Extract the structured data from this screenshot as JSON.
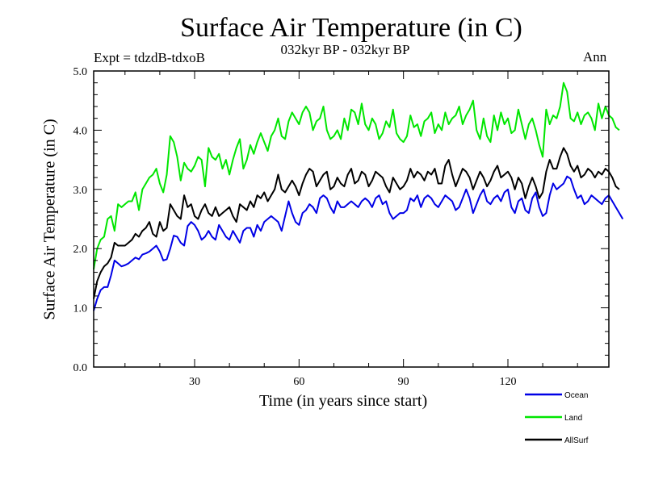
{
  "chart_data": {
    "type": "line",
    "title": "Surface Air Temperature (in C)",
    "subtitle": "032kyr BP - 032kyr BP",
    "experiment": "Expt = tdzdB-tdxoB",
    "season": "Ann",
    "xlabel": "Time (in years since start)",
    "ylabel": "Surface Air Temperature (in C)",
    "xlim": [
      1,
      149
    ],
    "ylim": [
      0,
      5
    ],
    "xticks": [
      30,
      60,
      90,
      120
    ],
    "xtick_labels": [
      "30",
      "60",
      "90",
      "120"
    ],
    "yticks": [
      0,
      1,
      2,
      3,
      4,
      5
    ],
    "ytick_labels": [
      "0.0",
      "1.0",
      "2.0",
      "3.0",
      "4.0",
      "5.0"
    ],
    "grid": false,
    "legend_position": "bottom-right",
    "series": [
      {
        "name": "Ocean",
        "color": "#0000e6",
        "values": [
          0.95,
          1.15,
          1.3,
          1.35,
          1.35,
          1.55,
          1.8,
          1.75,
          1.7,
          1.72,
          1.75,
          1.8,
          1.85,
          1.82,
          1.9,
          1.92,
          1.95,
          2.0,
          2.05,
          1.95,
          1.8,
          1.82,
          2.0,
          2.22,
          2.2,
          2.1,
          2.05,
          2.38,
          2.45,
          2.4,
          2.3,
          2.15,
          2.2,
          2.3,
          2.2,
          2.15,
          2.4,
          2.3,
          2.2,
          2.15,
          2.3,
          2.2,
          2.1,
          2.3,
          2.35,
          2.35,
          2.2,
          2.4,
          2.3,
          2.45,
          2.5,
          2.55,
          2.5,
          2.45,
          2.3,
          2.55,
          2.8,
          2.6,
          2.45,
          2.4,
          2.6,
          2.65,
          2.75,
          2.7,
          2.6,
          2.85,
          2.9,
          2.85,
          2.7,
          2.6,
          2.8,
          2.7,
          2.7,
          2.75,
          2.8,
          2.75,
          2.7,
          2.8,
          2.85,
          2.8,
          2.7,
          2.85,
          2.9,
          2.75,
          2.8,
          2.6,
          2.5,
          2.55,
          2.6,
          2.6,
          2.65,
          2.85,
          2.8,
          2.9,
          2.7,
          2.85,
          2.9,
          2.85,
          2.75,
          2.7,
          2.8,
          2.9,
          2.85,
          2.8,
          2.65,
          2.7,
          2.85,
          3.0,
          2.85,
          2.6,
          2.75,
          2.9,
          3.0,
          2.8,
          2.75,
          2.85,
          2.9,
          2.8,
          2.95,
          3.0,
          2.7,
          2.6,
          2.8,
          2.85,
          2.65,
          2.6,
          2.85,
          2.95,
          2.7,
          2.55,
          2.6,
          2.9,
          3.1,
          3.0,
          3.05,
          3.1,
          3.22,
          3.18,
          3.0,
          2.85,
          2.9,
          2.75,
          2.8,
          2.9,
          2.85,
          2.8,
          2.75,
          2.85,
          2.9,
          2.8,
          2.7,
          2.6,
          2.5
        ]
      },
      {
        "name": "Land",
        "color": "#00e600",
        "values": [
          1.65,
          2.0,
          2.15,
          2.2,
          2.5,
          2.55,
          2.3,
          2.75,
          2.7,
          2.75,
          2.8,
          2.8,
          2.95,
          2.65,
          3.0,
          3.1,
          3.2,
          3.25,
          3.35,
          3.1,
          2.95,
          3.25,
          3.9,
          3.8,
          3.55,
          3.15,
          3.45,
          3.35,
          3.3,
          3.4,
          3.55,
          3.5,
          3.05,
          3.7,
          3.55,
          3.5,
          3.6,
          3.35,
          3.5,
          3.25,
          3.5,
          3.7,
          3.85,
          3.35,
          3.5,
          3.75,
          3.6,
          3.8,
          3.95,
          3.8,
          3.65,
          3.9,
          4.0,
          4.2,
          3.9,
          3.85,
          4.15,
          4.3,
          4.2,
          4.1,
          4.3,
          4.4,
          4.3,
          4.0,
          4.15,
          4.2,
          4.4,
          4.0,
          3.85,
          3.9,
          4.0,
          3.85,
          4.2,
          4.0,
          4.35,
          4.3,
          4.1,
          4.45,
          4.1,
          4.0,
          4.2,
          4.1,
          3.85,
          3.95,
          4.15,
          4.05,
          4.35,
          3.95,
          3.85,
          3.8,
          3.9,
          4.25,
          4.05,
          4.1,
          3.9,
          4.15,
          4.2,
          4.3,
          3.95,
          4.1,
          4.0,
          4.3,
          4.1,
          4.2,
          4.25,
          4.4,
          4.1,
          4.25,
          4.35,
          4.5,
          4.0,
          3.85,
          4.2,
          3.9,
          3.8,
          4.25,
          4.0,
          4.3,
          4.1,
          4.2,
          3.95,
          4.0,
          4.35,
          4.1,
          3.85,
          4.1,
          4.2,
          4.0,
          3.75,
          3.55,
          4.35,
          4.1,
          4.25,
          4.2,
          4.4,
          4.8,
          4.65,
          4.2,
          4.15,
          4.3,
          4.1,
          4.25,
          4.3,
          4.2,
          4.0,
          4.45,
          4.2,
          4.4,
          4.25,
          4.2,
          4.05,
          4.0
        ]
      },
      {
        "name": "AllSurf",
        "color": "#000000",
        "values": [
          1.15,
          1.45,
          1.6,
          1.7,
          1.75,
          1.85,
          2.1,
          2.05,
          2.05,
          2.05,
          2.1,
          2.15,
          2.25,
          2.2,
          2.3,
          2.35,
          2.45,
          2.25,
          2.2,
          2.45,
          2.3,
          2.35,
          2.75,
          2.65,
          2.55,
          2.5,
          2.9,
          2.7,
          2.75,
          2.55,
          2.5,
          2.65,
          2.75,
          2.6,
          2.55,
          2.7,
          2.55,
          2.6,
          2.65,
          2.7,
          2.55,
          2.45,
          2.75,
          2.7,
          2.65,
          2.8,
          2.7,
          2.9,
          2.85,
          2.95,
          2.8,
          2.9,
          3.0,
          3.25,
          3.0,
          2.95,
          3.05,
          3.15,
          3.05,
          2.9,
          3.1,
          3.25,
          3.35,
          3.3,
          3.05,
          3.15,
          3.25,
          3.3,
          3.0,
          3.05,
          3.2,
          3.1,
          3.05,
          3.25,
          3.35,
          3.1,
          3.15,
          3.3,
          3.25,
          3.05,
          3.15,
          3.3,
          3.25,
          3.2,
          3.05,
          2.95,
          3.2,
          3.1,
          3.0,
          3.05,
          3.15,
          3.35,
          3.2,
          3.3,
          3.25,
          3.15,
          3.3,
          3.25,
          3.35,
          3.1,
          3.1,
          3.4,
          3.5,
          3.25,
          3.05,
          3.2,
          3.35,
          3.3,
          3.2,
          3.0,
          3.15,
          3.3,
          3.2,
          3.05,
          3.15,
          3.3,
          3.4,
          3.2,
          3.25,
          3.3,
          3.2,
          3.0,
          3.2,
          3.1,
          2.85,
          3.05,
          3.2,
          3.05,
          2.85,
          2.95,
          3.3,
          3.5,
          3.35,
          3.35,
          3.55,
          3.7,
          3.6,
          3.4,
          3.3,
          3.4,
          3.2,
          3.25,
          3.35,
          3.3,
          3.2,
          3.3,
          3.25,
          3.35,
          3.3,
          3.2,
          3.05,
          3.0
        ]
      }
    ]
  }
}
